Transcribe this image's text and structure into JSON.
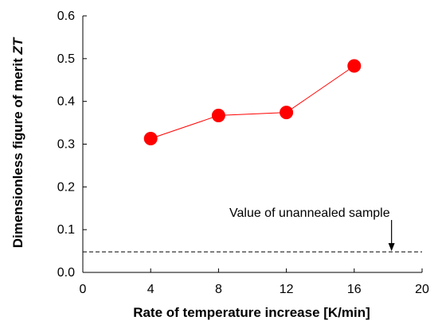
{
  "chart_data": {
    "type": "scatter",
    "title": "",
    "xlabel": "Rate of temperature increase [K/min]",
    "ylabel_prefix": "Dimensionless figure of merit ",
    "ylabel_italic": "ZT",
    "xlim": [
      0,
      20
    ],
    "ylim": [
      0.0,
      0.6
    ],
    "xticks": [
      0,
      4,
      8,
      12,
      16,
      20
    ],
    "yticks": [
      "0.0",
      "0.1",
      "0.2",
      "0.3",
      "0.4",
      "0.5",
      "0.6"
    ],
    "grid": false,
    "series": [
      {
        "x": [
          4,
          8,
          12,
          16
        ],
        "y": [
          0.313,
          0.367,
          0.374,
          0.483
        ],
        "marker": "circle",
        "connected": true,
        "color": "#ff0000"
      }
    ],
    "reference_line": {
      "y": 0.048,
      "style": "dashed",
      "color": "#000000"
    },
    "annotation": {
      "text": "Value of unannealed  sample",
      "arrow_x": 18.2,
      "arrow_direction": "down"
    }
  }
}
